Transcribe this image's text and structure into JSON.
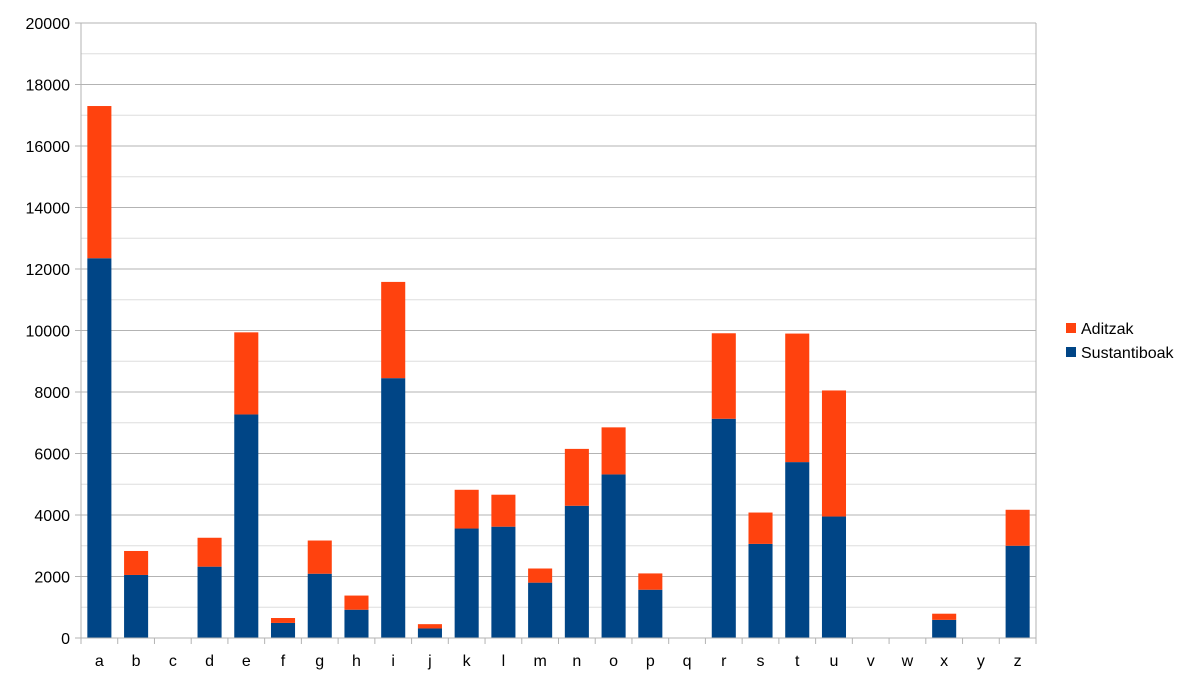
{
  "chart_data": {
    "type": "bar",
    "stacked": true,
    "title": "",
    "xlabel": "",
    "ylabel": "",
    "ylim": [
      0,
      20000
    ],
    "y_ticks": [
      "0",
      "2000",
      "4000",
      "6000",
      "8000",
      "10000",
      "12000",
      "14000",
      "16000",
      "18000",
      "20000"
    ],
    "grid": true,
    "legend_position": "right",
    "categories": [
      "a",
      "b",
      "c",
      "d",
      "e",
      "f",
      "g",
      "h",
      "i",
      "j",
      "k",
      "l",
      "m",
      "n",
      "o",
      "p",
      "q",
      "r",
      "s",
      "t",
      "u",
      "v",
      "w",
      "x",
      "y",
      "z"
    ],
    "series": [
      {
        "name": "Sustantiboak",
        "color": "#004586",
        "values": [
          12350,
          2050,
          0,
          2320,
          7270,
          490,
          2090,
          920,
          8450,
          310,
          3560,
          3620,
          1800,
          4300,
          5320,
          1570,
          0,
          7130,
          3060,
          5720,
          3950,
          0,
          0,
          590,
          0,
          3000
        ]
      },
      {
        "name": "Aditzak",
        "color": "#ff420e",
        "values": [
          4950,
          780,
          0,
          940,
          2670,
          160,
          1080,
          460,
          3130,
          140,
          1260,
          1040,
          460,
          1850,
          1530,
          530,
          0,
          2780,
          1020,
          4180,
          4100,
          0,
          0,
          200,
          0,
          1170
        ]
      }
    ]
  }
}
